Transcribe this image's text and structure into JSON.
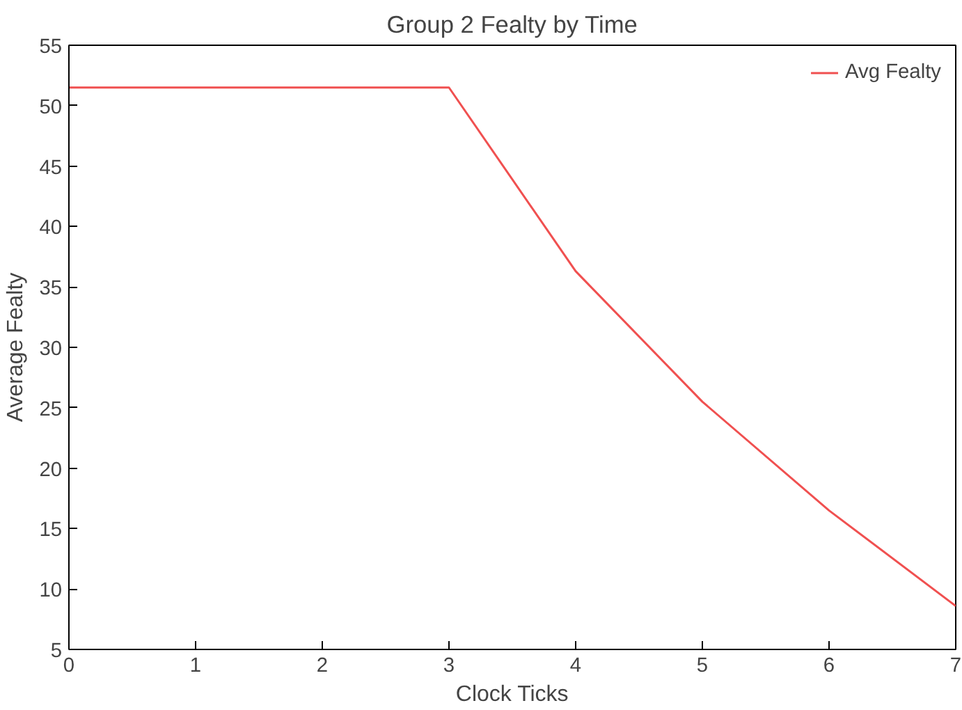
{
  "chart_data": {
    "type": "line",
    "title": "Group 2 Fealty by Time",
    "xlabel": "Clock Ticks",
    "ylabel": "Average Fealty",
    "x": [
      0,
      1,
      2,
      3,
      4,
      5,
      6,
      7
    ],
    "series": [
      {
        "name": "Avg Fealty",
        "color": "#f05050",
        "values": [
          51.5,
          51.5,
          51.5,
          51.5,
          36.3,
          25.5,
          16.5,
          8.6
        ]
      }
    ],
    "xlim": [
      0,
      7
    ],
    "xticks": [
      0,
      1,
      2,
      3,
      4,
      5,
      6,
      7
    ],
    "ylim": [
      5,
      55
    ],
    "yticks": [
      5,
      10,
      15,
      20,
      25,
      30,
      35,
      40,
      45,
      50,
      55
    ],
    "grid": false,
    "legend": "top right",
    "marker": "none",
    "line_style": "solid"
  }
}
